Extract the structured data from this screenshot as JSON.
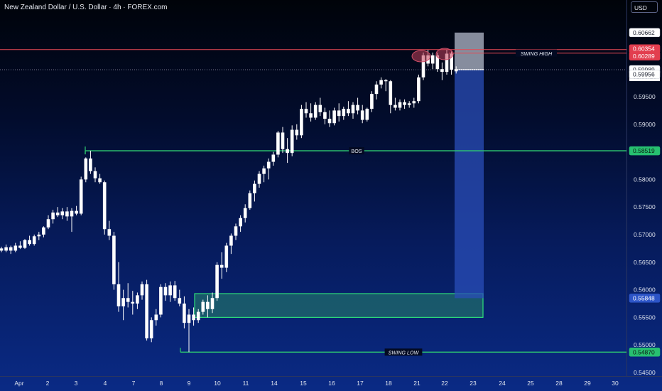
{
  "header": {
    "title": "New Zealand Dollar / U.S. Dollar · 4h · FOREX.com"
  },
  "axis": {
    "currency": "USD"
  },
  "countdown": "01:30:16",
  "colors": {
    "candle": "#ffffff",
    "level_line": "#2ecc71",
    "resistance_line": "#e84855",
    "box_fill": "#1f6b6b",
    "box_border": "#2ee07a",
    "projection": "#2a4db8",
    "projection_top": "#9ea5b5"
  },
  "chart_data": {
    "type": "candlestick",
    "title": "New Zealand Dollar / U.S. Dollar · 4h · FOREX.com",
    "ylim": [
      0.545,
      0.6075
    ],
    "y_ticks": [
      0.545,
      0.55,
      0.555,
      0.56,
      0.565,
      0.57,
      0.575,
      0.58,
      0.585,
      0.59,
      0.595
    ],
    "y_tick_labels": [
      "0.54500",
      "0.55000",
      "0.55500",
      "0.56000",
      "0.56500",
      "0.57000",
      "0.57500",
      "0.58000",
      "0.58500",
      "0.59000",
      "0.59500"
    ],
    "x_tick_labels": [
      "Apr",
      "2",
      "3",
      "4",
      "7",
      "8",
      "9",
      "10",
      "11",
      "14",
      "15",
      "16",
      "17",
      "18",
      "21",
      "22",
      "23",
      "24",
      "25",
      "28",
      "29",
      "30"
    ],
    "price_labels": [
      {
        "value": 0.60662,
        "text": "0.60662",
        "style": "white"
      },
      {
        "value": 0.60354,
        "text": "0.60354",
        "style": "red"
      },
      {
        "value": 0.60289,
        "text": "0.60289",
        "style": "red"
      },
      {
        "value": 0.59989,
        "text": "0.59989",
        "style": "current"
      },
      {
        "value": 0.59956,
        "text": "0.59956",
        "style": "white"
      },
      {
        "value": 0.58519,
        "text": "0.58519",
        "style": "green"
      },
      {
        "value": 0.55848,
        "text": "0.55848",
        "style": "blue"
      },
      {
        "value": 0.5487,
        "text": "0.54870",
        "style": "green"
      }
    ],
    "levels": [
      {
        "label": "BOS",
        "value": 0.58519
      },
      {
        "label": "SWING LOW",
        "value": 0.5487
      },
      {
        "label": "SWING HIGH",
        "value": 0.60289
      }
    ],
    "resistance": 0.60354,
    "demand_zone": [
      0.555,
      0.5593
    ],
    "projection": [
      0.55848,
      0.60662
    ],
    "candles": [
      [
        0.5675,
        0.5678,
        0.5668,
        0.5671
      ],
      [
        0.5671,
        0.5682,
        0.5668,
        0.5677
      ],
      [
        0.5677,
        0.568,
        0.5665,
        0.5671
      ],
      [
        0.5671,
        0.5685,
        0.5668,
        0.568
      ],
      [
        0.568,
        0.5688,
        0.5674,
        0.5676
      ],
      [
        0.5676,
        0.5692,
        0.5674,
        0.569
      ],
      [
        0.569,
        0.5698,
        0.568,
        0.5683
      ],
      [
        0.5683,
        0.57,
        0.568,
        0.5697
      ],
      [
        0.5697,
        0.5705,
        0.569,
        0.57
      ],
      [
        0.57,
        0.5715,
        0.5695,
        0.5713
      ],
      [
        0.5713,
        0.5735,
        0.571,
        0.5728
      ],
      [
        0.5728,
        0.5745,
        0.572,
        0.574
      ],
      [
        0.574,
        0.575,
        0.5732,
        0.5735
      ],
      [
        0.5735,
        0.5748,
        0.5728,
        0.5742
      ],
      [
        0.5742,
        0.575,
        0.5725,
        0.5733
      ],
      [
        0.5733,
        0.5748,
        0.5705,
        0.5743
      ],
      [
        0.5743,
        0.5752,
        0.5735,
        0.5738
      ],
      [
        0.5738,
        0.5805,
        0.5735,
        0.58
      ],
      [
        0.58,
        0.584,
        0.5795,
        0.5838
      ],
      [
        0.5838,
        0.5852,
        0.581,
        0.5815
      ],
      [
        0.5815,
        0.5822,
        0.5795,
        0.5802
      ],
      [
        0.5802,
        0.581,
        0.5792,
        0.5795
      ],
      [
        0.5795,
        0.5798,
        0.57,
        0.571
      ],
      [
        0.571,
        0.5725,
        0.569,
        0.5698
      ],
      [
        0.5698,
        0.5705,
        0.56,
        0.561
      ],
      [
        0.561,
        0.565,
        0.556,
        0.557
      ],
      [
        0.557,
        0.56,
        0.5545,
        0.5585
      ],
      [
        0.5585,
        0.5612,
        0.5568,
        0.5578
      ],
      [
        0.5578,
        0.5598,
        0.5555,
        0.5575
      ],
      [
        0.5575,
        0.5595,
        0.5565,
        0.559
      ],
      [
        0.559,
        0.5615,
        0.5582,
        0.561
      ],
      [
        0.561,
        0.5618,
        0.5508,
        0.5512
      ],
      [
        0.5512,
        0.555,
        0.5505,
        0.5545
      ],
      [
        0.5545,
        0.5565,
        0.5535,
        0.5555
      ],
      [
        0.5555,
        0.561,
        0.555,
        0.5605
      ],
      [
        0.5605,
        0.5612,
        0.558,
        0.559
      ],
      [
        0.559,
        0.5615,
        0.5578,
        0.5608
      ],
      [
        0.5608,
        0.5616,
        0.558,
        0.5585
      ],
      [
        0.5585,
        0.56,
        0.557,
        0.5575
      ],
      [
        0.5575,
        0.5588,
        0.553,
        0.554
      ],
      [
        0.554,
        0.5565,
        0.5487,
        0.5555
      ],
      [
        0.5555,
        0.5568,
        0.5535,
        0.5545
      ],
      [
        0.5545,
        0.5565,
        0.554,
        0.556
      ],
      [
        0.556,
        0.5582,
        0.5555,
        0.5578
      ],
      [
        0.5578,
        0.559,
        0.555,
        0.5565
      ],
      [
        0.5565,
        0.5595,
        0.5558,
        0.5585
      ],
      [
        0.5585,
        0.565,
        0.558,
        0.5645
      ],
      [
        0.5645,
        0.5668,
        0.562,
        0.564
      ],
      [
        0.564,
        0.5685,
        0.5632,
        0.568
      ],
      [
        0.568,
        0.5702,
        0.5665,
        0.5698
      ],
      [
        0.5698,
        0.572,
        0.569,
        0.5715
      ],
      [
        0.5715,
        0.5735,
        0.5705,
        0.573
      ],
      [
        0.573,
        0.5755,
        0.5722,
        0.5748
      ],
      [
        0.5748,
        0.578,
        0.5745,
        0.5775
      ],
      [
        0.5775,
        0.5798,
        0.576,
        0.5792
      ],
      [
        0.5792,
        0.5815,
        0.5785,
        0.581
      ],
      [
        0.581,
        0.5825,
        0.5795,
        0.582
      ],
      [
        0.582,
        0.5838,
        0.58,
        0.5832
      ],
      [
        0.5832,
        0.585,
        0.5825,
        0.5845
      ],
      [
        0.5845,
        0.5888,
        0.584,
        0.5885
      ],
      [
        0.5885,
        0.5895,
        0.5848,
        0.5855
      ],
      [
        0.5855,
        0.5875,
        0.583,
        0.5848
      ],
      [
        0.5848,
        0.5898,
        0.5842,
        0.589
      ],
      [
        0.589,
        0.59,
        0.5872,
        0.588
      ],
      [
        0.588,
        0.5935,
        0.5875,
        0.5928
      ],
      [
        0.5928,
        0.594,
        0.5912,
        0.592
      ],
      [
        0.592,
        0.5938,
        0.5905,
        0.5912
      ],
      [
        0.5912,
        0.594,
        0.5908,
        0.5935
      ],
      [
        0.5935,
        0.5948,
        0.5915,
        0.5922
      ],
      [
        0.5922,
        0.593,
        0.59,
        0.591
      ],
      [
        0.591,
        0.5925,
        0.5895,
        0.5902
      ],
      [
        0.5902,
        0.593,
        0.5898,
        0.5925
      ],
      [
        0.5925,
        0.5938,
        0.5905,
        0.5915
      ],
      [
        0.5915,
        0.5932,
        0.5908,
        0.5928
      ],
      [
        0.5928,
        0.5942,
        0.5915,
        0.592
      ],
      [
        0.592,
        0.594,
        0.591,
        0.5935
      ],
      [
        0.5935,
        0.5948,
        0.5918,
        0.5925
      ],
      [
        0.5925,
        0.5935,
        0.5902,
        0.5908
      ],
      [
        0.5908,
        0.593,
        0.5905,
        0.5928
      ],
      [
        0.5928,
        0.596,
        0.5922,
        0.5955
      ],
      [
        0.5955,
        0.5978,
        0.5945,
        0.5972
      ],
      [
        0.5972,
        0.5985,
        0.5965,
        0.598
      ],
      [
        0.598,
        0.5982,
        0.596,
        0.5978
      ],
      [
        0.5978,
        0.598,
        0.592,
        0.5935
      ],
      [
        0.5935,
        0.5948,
        0.5925,
        0.593
      ],
      [
        0.593,
        0.5945,
        0.5925,
        0.594
      ],
      [
        0.594,
        0.5945,
        0.5928,
        0.5935
      ],
      [
        0.5935,
        0.5942,
        0.593,
        0.5938
      ],
      [
        0.5938,
        0.5948,
        0.593,
        0.5942
      ],
      [
        0.5942,
        0.599,
        0.5938,
        0.5985
      ],
      [
        0.5985,
        0.603,
        0.598,
        0.6025
      ],
      [
        0.6025,
        0.6035,
        0.6005,
        0.601
      ],
      [
        0.601,
        0.603,
        0.6,
        0.6025
      ],
      [
        0.6025,
        0.603,
        0.5995,
        0.6
      ],
      [
        0.6,
        0.6012,
        0.598,
        0.5995
      ],
      [
        0.5995,
        0.6035,
        0.599,
        0.6028
      ],
      [
        0.6028,
        0.6032,
        0.599,
        0.5999
      ],
      [
        0.5999,
        0.6005,
        0.5992,
        0.5996
      ]
    ]
  }
}
